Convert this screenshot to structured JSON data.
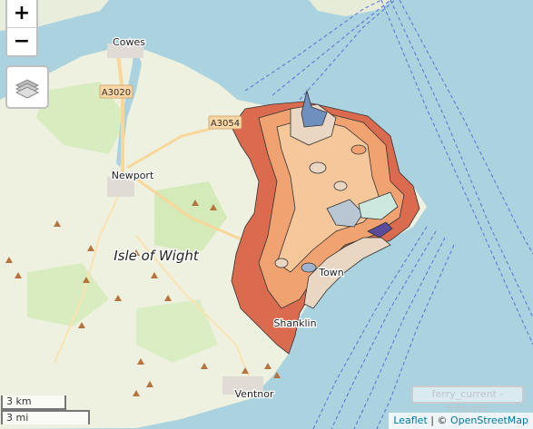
{
  "map": {
    "place_labels": {
      "cowes": "Cowes",
      "newport": "Newport",
      "isle": "Isle of Wight",
      "ventnor": "Ventnor",
      "town": "Town",
      "shanklin": "Shanklin"
    },
    "road_labels": {
      "a3020": "A3020",
      "a3054": "A3054"
    },
    "colors": {
      "sea": "#aad3df",
      "land": "#f2efe9",
      "green": "#cde9b5",
      "choropleth_dark": "#db6b4f",
      "choropleth_mid": "#f0a371",
      "choropleth_light": "#f6c79a",
      "choropleth_pale": "#e9d7c3",
      "water_blue": "#8aa6c9"
    }
  },
  "controls": {
    "zoom_in": "+",
    "zoom_out": "−",
    "layers_icon": "layers-icon"
  },
  "scale": {
    "metric": "3 km",
    "imperial": "3 mi"
  },
  "legend": {
    "label": "ferry_current - minutes"
  },
  "attribution": {
    "leaflet": "Leaflet",
    "sep": " | © ",
    "osm": "OpenStreetMap"
  }
}
